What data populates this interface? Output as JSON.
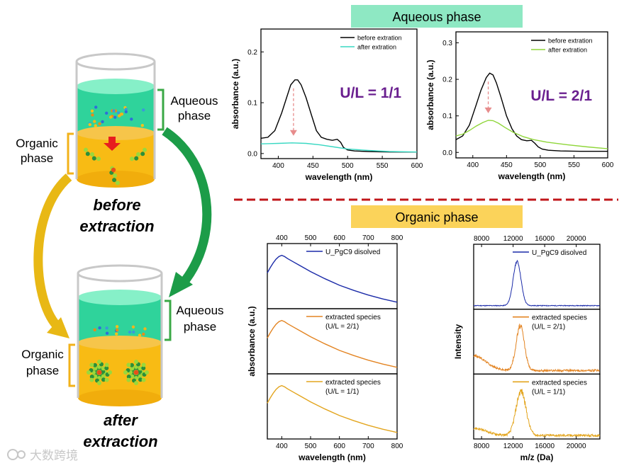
{
  "banners": {
    "aqueous": "Aqueous phase",
    "organic": "Organic phase",
    "aqueous_color": "#8ee8c3",
    "organic_color": "#fbd35a",
    "divider_color": "#c0161a"
  },
  "schematic": {
    "top_beaker": {
      "aqueous_label_1": "Aqueous",
      "aqueous_label_2": "phase",
      "organic_label_1": "Organic",
      "organic_label_2": "phase",
      "caption_1": "before",
      "caption_2": "extraction"
    },
    "bottom_beaker": {
      "aqueous_label_1": "Aqueous",
      "aqueous_label_2": "phase",
      "organic_label_1": "Organic",
      "organic_label_2": "phase",
      "caption_1": "after",
      "caption_2": "extraction"
    },
    "colors": {
      "aqueous_liquid": "#2fd39b",
      "organic_liquid": "#f8bb14",
      "bracket_green": "#3aa845",
      "bracket_orange": "#f2b21a",
      "arrow_green": "#1c9c48",
      "arrow_yellow": "#e8b815",
      "down_arrow": "#e81e1e"
    }
  },
  "watermark": "大数跨境",
  "chart_data": [
    {
      "id": "aq1",
      "type": "line",
      "title": "",
      "annotation": "U/L = 1/1",
      "annotation_color": "#6a1f8f",
      "xlabel": "wavelength (nm)",
      "ylabel": "absorbance (a.u.)",
      "xlim": [
        375,
        600
      ],
      "ylim": [
        -0.01,
        0.245
      ],
      "xticks": [
        "400",
        "450",
        "500",
        "550",
        "600"
      ],
      "yticks": [
        "0.0",
        "0.1",
        "0.2"
      ],
      "legend": "top-right",
      "series": [
        {
          "name": "before extration",
          "color": "#000000",
          "x": [
            375,
            385,
            395,
            405,
            412,
            418,
            424,
            428,
            433,
            440,
            448,
            455,
            462,
            470,
            478,
            485,
            490,
            494,
            500,
            510,
            530,
            560,
            600
          ],
          "y": [
            0.03,
            0.032,
            0.045,
            0.08,
            0.11,
            0.135,
            0.145,
            0.145,
            0.135,
            0.11,
            0.075,
            0.045,
            0.032,
            0.028,
            0.026,
            0.028,
            0.022,
            0.012,
            0.007,
            0.005,
            0.004,
            0.003,
            0.003
          ]
        },
        {
          "name": "after extration",
          "color": "#38d8c2",
          "x": [
            375,
            400,
            420,
            440,
            460,
            480,
            500,
            530,
            560,
            600
          ],
          "y": [
            0.019,
            0.02,
            0.021,
            0.02,
            0.017,
            0.013,
            0.009,
            0.006,
            0.004,
            0.003
          ]
        }
      ]
    },
    {
      "id": "aq2",
      "type": "line",
      "title": "",
      "annotation": "U/L = 2/1",
      "annotation_color": "#6a1f8f",
      "xlabel": "wavelength (nm)",
      "ylabel": "absorbance (a.u.)",
      "xlim": [
        375,
        600
      ],
      "ylim": [
        -0.015,
        0.33
      ],
      "xticks": [
        "400",
        "450",
        "500",
        "550",
        "600"
      ],
      "yticks": [
        "0.0",
        "0.1",
        "0.2",
        "0.3"
      ],
      "legend": "top-right",
      "series": [
        {
          "name": "before extration",
          "color": "#000000",
          "x": [
            375,
            385,
            395,
            405,
            412,
            420,
            425,
            430,
            435,
            442,
            450,
            458,
            465,
            472,
            480,
            487,
            492,
            497,
            503,
            512,
            530,
            560,
            600
          ],
          "y": [
            0.035,
            0.045,
            0.075,
            0.13,
            0.17,
            0.205,
            0.217,
            0.212,
            0.19,
            0.15,
            0.1,
            0.065,
            0.045,
            0.035,
            0.032,
            0.033,
            0.025,
            0.015,
            0.009,
            0.006,
            0.004,
            0.003,
            0.003
          ]
        },
        {
          "name": "after extration",
          "color": "#8fd63a",
          "x": [
            375,
            385,
            395,
            405,
            415,
            423,
            430,
            438,
            448,
            460,
            475,
            490,
            510,
            540,
            570,
            600
          ],
          "y": [
            0.045,
            0.05,
            0.06,
            0.072,
            0.082,
            0.088,
            0.087,
            0.08,
            0.068,
            0.055,
            0.043,
            0.035,
            0.028,
            0.021,
            0.015,
            0.01
          ]
        }
      ]
    },
    {
      "id": "org1",
      "type": "line",
      "title": "",
      "xlabel": "wavelength (nm)",
      "ylabel": "absorbance (a.u.)",
      "xlim": [
        350,
        800
      ],
      "xticks": [
        "400",
        "500",
        "600",
        "700",
        "800"
      ],
      "xticks_top": [
        "400",
        "500",
        "600",
        "700",
        "800"
      ],
      "panels": [
        {
          "legend": [
            "U_PgC9 disolved"
          ],
          "color": "#1a2aa8",
          "x": [
            350,
            360,
            370,
            380,
            390,
            400,
            410,
            420,
            440,
            460,
            480,
            500,
            550,
            600,
            650,
            700,
            750,
            800
          ],
          "y": [
            0.55,
            0.63,
            0.7,
            0.76,
            0.8,
            0.82,
            0.8,
            0.77,
            0.72,
            0.67,
            0.62,
            0.57,
            0.46,
            0.36,
            0.28,
            0.21,
            0.15,
            0.1
          ]
        },
        {
          "legend": [
            "extracted species",
            "(U/L = 2/1)"
          ],
          "color": "#e38422",
          "x": [
            350,
            360,
            370,
            380,
            390,
            400,
            410,
            420,
            440,
            460,
            480,
            500,
            550,
            600,
            650,
            700,
            750,
            800
          ],
          "y": [
            0.55,
            0.63,
            0.7,
            0.76,
            0.8,
            0.82,
            0.8,
            0.77,
            0.72,
            0.67,
            0.62,
            0.57,
            0.46,
            0.36,
            0.28,
            0.21,
            0.15,
            0.1
          ]
        },
        {
          "legend": [
            "extracted species",
            "(U/L = 1/1)"
          ],
          "color": "#e3a51e",
          "x": [
            350,
            360,
            370,
            380,
            390,
            400,
            410,
            420,
            440,
            460,
            480,
            500,
            550,
            600,
            650,
            700,
            750,
            800
          ],
          "y": [
            0.55,
            0.63,
            0.7,
            0.76,
            0.8,
            0.82,
            0.8,
            0.77,
            0.72,
            0.67,
            0.62,
            0.57,
            0.46,
            0.36,
            0.28,
            0.21,
            0.15,
            0.1
          ]
        }
      ]
    },
    {
      "id": "org2",
      "type": "line",
      "title": "",
      "xlabel": "m/z (Da)",
      "ylabel": "Intensity",
      "xlim": [
        7000,
        23000
      ],
      "xticks": [
        "8000",
        "12000",
        "16000",
        "20000"
      ],
      "xticks_top": [
        "8000",
        "12000",
        "16000",
        "20000"
      ],
      "panels": [
        {
          "legend": [
            "U_PgC9 disolved"
          ],
          "color": "#1a2aa8",
          "peak": 12500,
          "width": 700,
          "base": 0.12,
          "noise": 0.012,
          "floor": 0.0
        },
        {
          "legend": [
            "extracted species",
            "(U/L = 2/1)"
          ],
          "color": "#e38422",
          "peak": 12900,
          "width": 750,
          "base": 0.12,
          "noise": 0.035,
          "floor": 0.25
        },
        {
          "legend": [
            "extracted species",
            "(U/L = 1/1)"
          ],
          "color": "#e3a51e",
          "peak": 13000,
          "width": 900,
          "base": 0.12,
          "noise": 0.04,
          "floor": 0.12
        }
      ]
    }
  ]
}
